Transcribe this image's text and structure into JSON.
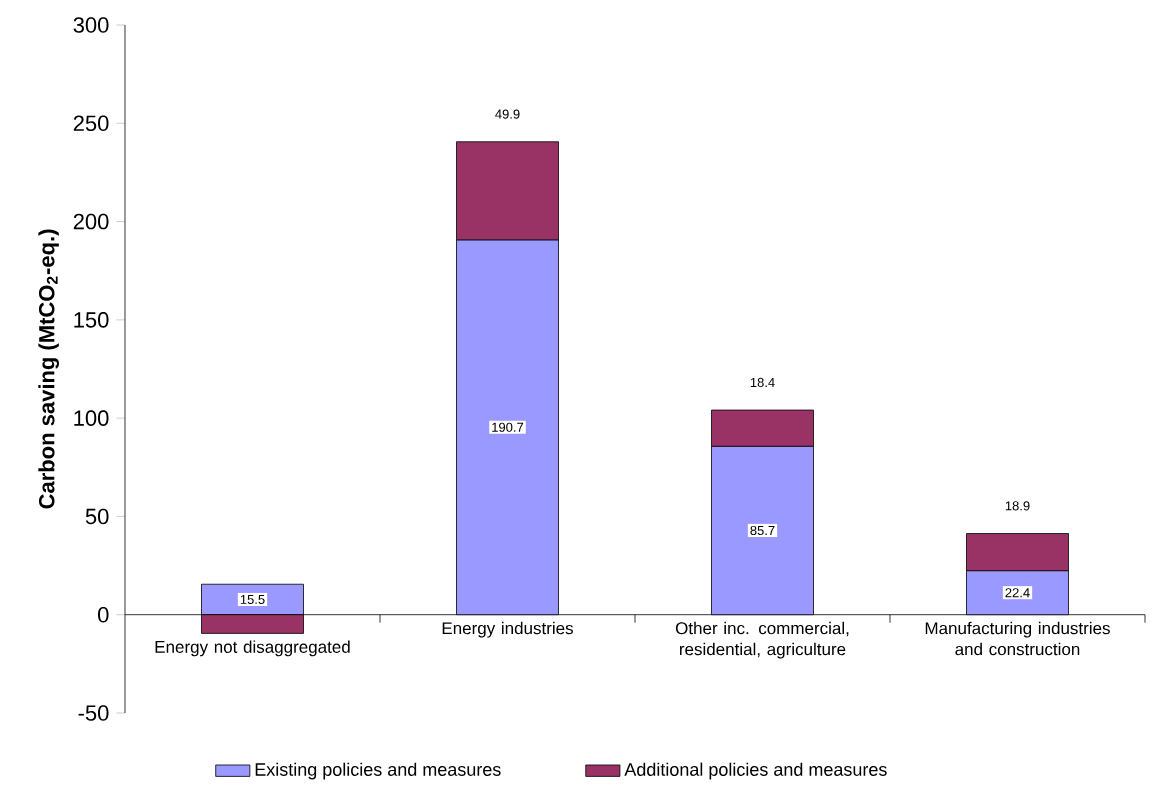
{
  "chart_data": {
    "type": "bar",
    "stacked": true,
    "ylabel": "Carbon saving (MtCO$_{2}$-eq.)",
    "categories": [
      "Energy not disaggregated",
      "Energy industries",
      "Other inc. commercial, residential, agriculture",
      "Manufacturing industries and construction"
    ],
    "series": [
      {
        "name": "Existing policies and measures",
        "color": "#9999ff",
        "values": [
          15.5,
          190.7,
          85.7,
          22.4
        ],
        "value_labels": [
          "15.5",
          "190.7",
          "85.7",
          "22.4"
        ]
      },
      {
        "name": "Additional policies and measures",
        "color": "#993366",
        "values": [
          -9.5,
          49.9,
          18.4,
          18.9
        ],
        "value_labels": [
          null,
          "49.9",
          "18.4",
          "18.9"
        ]
      }
    ],
    "ylim": [
      -50,
      300
    ],
    "yticks": [
      -50,
      0,
      50,
      100,
      150,
      200,
      250,
      300
    ],
    "grid": false,
    "legend": "bottom"
  }
}
